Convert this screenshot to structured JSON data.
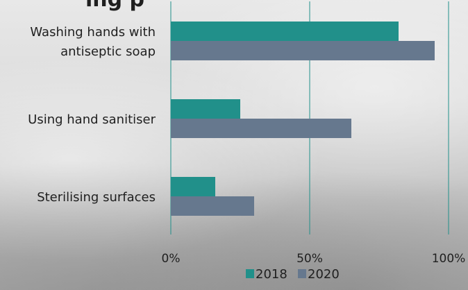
{
  "chart_data": {
    "type": "bar",
    "orientation": "horizontal",
    "title_fragment": "ing p",
    "categories": [
      "Washing hands with\nantiseptic soap",
      "Using hand sanitiser",
      "Sterilising surfaces"
    ],
    "series": [
      {
        "name": "2018",
        "color": "#21908a",
        "values": [
          82,
          25,
          16
        ]
      },
      {
        "name": "2020",
        "color": "#66788e",
        "values": [
          95,
          65,
          30
        ]
      }
    ],
    "xlim": [
      0,
      100
    ],
    "xticks": [
      "0%",
      "50%",
      "100%"
    ],
    "grid": true,
    "gridline_color": "#21908a",
    "legend_position": "bottom-center"
  }
}
